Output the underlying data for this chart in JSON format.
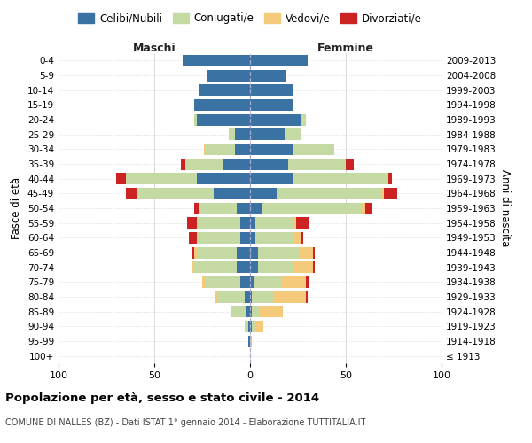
{
  "age_groups": [
    "100+",
    "95-99",
    "90-94",
    "85-89",
    "80-84",
    "75-79",
    "70-74",
    "65-69",
    "60-64",
    "55-59",
    "50-54",
    "45-49",
    "40-44",
    "35-39",
    "30-34",
    "25-29",
    "20-24",
    "15-19",
    "10-14",
    "5-9",
    "0-4"
  ],
  "birth_years": [
    "≤ 1913",
    "1914-1918",
    "1919-1923",
    "1924-1928",
    "1929-1933",
    "1934-1938",
    "1939-1943",
    "1944-1948",
    "1949-1953",
    "1954-1958",
    "1959-1963",
    "1964-1968",
    "1969-1973",
    "1974-1978",
    "1979-1983",
    "1984-1988",
    "1989-1993",
    "1994-1998",
    "1999-2003",
    "2004-2008",
    "2009-2013"
  ],
  "male": {
    "celibi": [
      0,
      1,
      1,
      2,
      3,
      5,
      7,
      7,
      5,
      5,
      7,
      19,
      28,
      14,
      8,
      8,
      28,
      29,
      27,
      22,
      35
    ],
    "coniugati": [
      0,
      0,
      2,
      8,
      14,
      18,
      22,
      21,
      23,
      23,
      20,
      40,
      37,
      20,
      15,
      3,
      1,
      0,
      0,
      0,
      0
    ],
    "vedovi": [
      0,
      0,
      0,
      0,
      1,
      2,
      1,
      1,
      0,
      0,
      0,
      0,
      0,
      0,
      1,
      0,
      0,
      0,
      0,
      0,
      0
    ],
    "divorziati": [
      0,
      0,
      0,
      0,
      0,
      0,
      0,
      1,
      4,
      5,
      2,
      6,
      5,
      2,
      0,
      0,
      0,
      0,
      0,
      0,
      0
    ]
  },
  "female": {
    "nubili": [
      0,
      0,
      1,
      1,
      1,
      2,
      4,
      4,
      3,
      3,
      6,
      14,
      22,
      20,
      22,
      18,
      27,
      22,
      22,
      19,
      30
    ],
    "coniugate": [
      0,
      0,
      2,
      4,
      11,
      14,
      19,
      22,
      20,
      20,
      52,
      55,
      50,
      30,
      22,
      9,
      2,
      0,
      0,
      0,
      0
    ],
    "vedove": [
      0,
      1,
      4,
      12,
      17,
      13,
      10,
      7,
      4,
      1,
      2,
      1,
      0,
      0,
      0,
      0,
      0,
      0,
      0,
      0,
      0
    ],
    "divorziate": [
      0,
      0,
      0,
      0,
      1,
      2,
      1,
      1,
      1,
      7,
      4,
      7,
      2,
      4,
      0,
      0,
      0,
      0,
      0,
      0,
      0
    ]
  },
  "color_celibi": "#3b72a4",
  "color_coniugati": "#c5d9a2",
  "color_vedovi": "#f5c97a",
  "color_divorziati": "#cc2222",
  "title": "Popolazione per età, sesso e stato civile - 2014",
  "subtitle": "COMUNE DI NALLES (BZ) - Dati ISTAT 1° gennaio 2014 - Elaborazione TUTTITALIA.IT",
  "xlabel_left": "Maschi",
  "xlabel_right": "Femmine",
  "ylabel": "Fasce di età",
  "ylabel_right": "Anni di nascita",
  "xlim": 100,
  "bg_color": "#ffffff",
  "grid_color": "#cccccc"
}
